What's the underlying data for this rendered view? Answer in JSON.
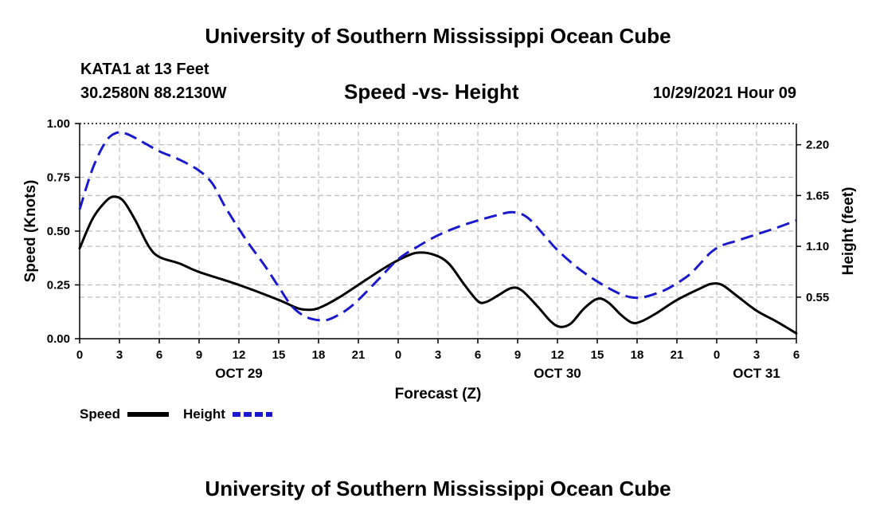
{
  "header": {
    "title": "University of Southern Mississippi Ocean Cube",
    "station": "KATA1 at 13 Feet",
    "coordinates": "30.2580N  88.2130W",
    "run_date": "10/29/2021 Hour 09"
  },
  "footer": {
    "title": "University of Southern Mississippi Ocean Cube"
  },
  "chart_data": {
    "type": "line",
    "title": "Speed -vs- Height",
    "xlabel": "Forecast (Z)",
    "ylabel": "Speed (Knots)",
    "y2label": "Height (feet)",
    "x_unit": "hours from Oct 29 00Z",
    "xlim": [
      0,
      54
    ],
    "ylim": [
      0,
      1.0
    ],
    "y2lim": [
      0.1,
      2.43
    ],
    "grid": true,
    "x_ticks": [
      {
        "h": 0,
        "label": "0"
      },
      {
        "h": 3,
        "label": "3"
      },
      {
        "h": 6,
        "label": "6"
      },
      {
        "h": 9,
        "label": "9"
      },
      {
        "h": 12,
        "label": "12"
      },
      {
        "h": 15,
        "label": "15"
      },
      {
        "h": 18,
        "label": "18"
      },
      {
        "h": 21,
        "label": "21"
      },
      {
        "h": 24,
        "label": "0"
      },
      {
        "h": 27,
        "label": "3"
      },
      {
        "h": 30,
        "label": "6"
      },
      {
        "h": 33,
        "label": "9"
      },
      {
        "h": 36,
        "label": "12"
      },
      {
        "h": 39,
        "label": "15"
      },
      {
        "h": 42,
        "label": "18"
      },
      {
        "h": 45,
        "label": "21"
      },
      {
        "h": 48,
        "label": "0"
      },
      {
        "h": 51,
        "label": "3"
      },
      {
        "h": 54,
        "label": "6"
      }
    ],
    "date_labels": [
      {
        "h": 12,
        "label": "OCT 29"
      },
      {
        "h": 36,
        "label": "OCT 30"
      },
      {
        "h": 51,
        "label": "OCT 31"
      }
    ],
    "y_ticks": [
      {
        "v": 0,
        "label": "0.00"
      },
      {
        "v": 0.25,
        "label": "0.25"
      },
      {
        "v": 0.5,
        "label": "0.50"
      },
      {
        "v": 0.75,
        "label": "0.75"
      },
      {
        "v": 1.0,
        "label": "1.00"
      }
    ],
    "y2_ticks": [
      {
        "v": 0.55,
        "label": "0.55"
      },
      {
        "v": 1.1,
        "label": "1.10"
      },
      {
        "v": 1.65,
        "label": "1.65"
      },
      {
        "v": 2.2,
        "label": "2.20"
      }
    ],
    "series": [
      {
        "name": "Speed",
        "axis": "left",
        "color": "#000000",
        "dash": "solid",
        "points": [
          [
            0,
            0.42
          ],
          [
            1,
            0.56
          ],
          [
            2,
            0.64
          ],
          [
            2.6,
            0.66
          ],
          [
            3.3,
            0.64
          ],
          [
            4.2,
            0.55
          ],
          [
            5.2,
            0.43
          ],
          [
            6,
            0.38
          ],
          [
            7.5,
            0.35
          ],
          [
            9,
            0.31
          ],
          [
            12,
            0.25
          ],
          [
            15,
            0.18
          ],
          [
            16.5,
            0.14
          ],
          [
            17.5,
            0.135
          ],
          [
            18.3,
            0.15
          ],
          [
            19.5,
            0.19
          ],
          [
            21,
            0.25
          ],
          [
            23,
            0.33
          ],
          [
            24.5,
            0.38
          ],
          [
            25.5,
            0.4
          ],
          [
            26.7,
            0.39
          ],
          [
            27.8,
            0.35
          ],
          [
            29,
            0.25
          ],
          [
            30,
            0.175
          ],
          [
            30.6,
            0.17
          ],
          [
            31.5,
            0.2
          ],
          [
            32.5,
            0.235
          ],
          [
            33.3,
            0.225
          ],
          [
            34.5,
            0.15
          ],
          [
            35.5,
            0.08
          ],
          [
            36.2,
            0.055
          ],
          [
            37,
            0.07
          ],
          [
            38,
            0.14
          ],
          [
            39,
            0.185
          ],
          [
            39.8,
            0.17
          ],
          [
            40.8,
            0.11
          ],
          [
            41.6,
            0.075
          ],
          [
            42.3,
            0.08
          ],
          [
            43.5,
            0.12
          ],
          [
            45,
            0.18
          ],
          [
            46.8,
            0.235
          ],
          [
            47.6,
            0.255
          ],
          [
            48.4,
            0.25
          ],
          [
            49.5,
            0.2
          ],
          [
            51,
            0.13
          ],
          [
            52.5,
            0.08
          ],
          [
            54,
            0.025
          ]
        ]
      },
      {
        "name": "Height",
        "axis": "right",
        "color": "#1a1acc",
        "dash": "dashed",
        "points": [
          [
            0,
            1.5
          ],
          [
            1,
            1.95
          ],
          [
            2,
            2.24
          ],
          [
            2.8,
            2.33
          ],
          [
            3.5,
            2.32
          ],
          [
            4.5,
            2.25
          ],
          [
            6,
            2.13
          ],
          [
            7.5,
            2.04
          ],
          [
            9,
            1.92
          ],
          [
            10,
            1.78
          ],
          [
            11,
            1.52
          ],
          [
            12.5,
            1.18
          ],
          [
            14,
            0.88
          ],
          [
            15,
            0.66
          ],
          [
            16,
            0.45
          ],
          [
            17,
            0.34
          ],
          [
            18,
            0.3
          ],
          [
            18.8,
            0.31
          ],
          [
            20,
            0.4
          ],
          [
            21,
            0.52
          ],
          [
            22.5,
            0.74
          ],
          [
            24,
            0.96
          ],
          [
            25.5,
            1.1
          ],
          [
            27,
            1.22
          ],
          [
            28.5,
            1.31
          ],
          [
            30,
            1.38
          ],
          [
            31.5,
            1.44
          ],
          [
            32.5,
            1.47
          ],
          [
            33.3,
            1.45
          ],
          [
            34,
            1.38
          ],
          [
            35,
            1.22
          ],
          [
            36,
            1.06
          ],
          [
            37.5,
            0.87
          ],
          [
            39,
            0.72
          ],
          [
            40.5,
            0.6
          ],
          [
            41.5,
            0.55
          ],
          [
            42.5,
            0.55
          ],
          [
            44,
            0.62
          ],
          [
            45,
            0.7
          ],
          [
            46,
            0.8
          ],
          [
            46.8,
            0.92
          ],
          [
            47.6,
            1.04
          ],
          [
            48.4,
            1.11
          ],
          [
            49.5,
            1.16
          ],
          [
            51,
            1.23
          ],
          [
            52.5,
            1.3
          ],
          [
            54,
            1.38
          ]
        ]
      }
    ]
  }
}
